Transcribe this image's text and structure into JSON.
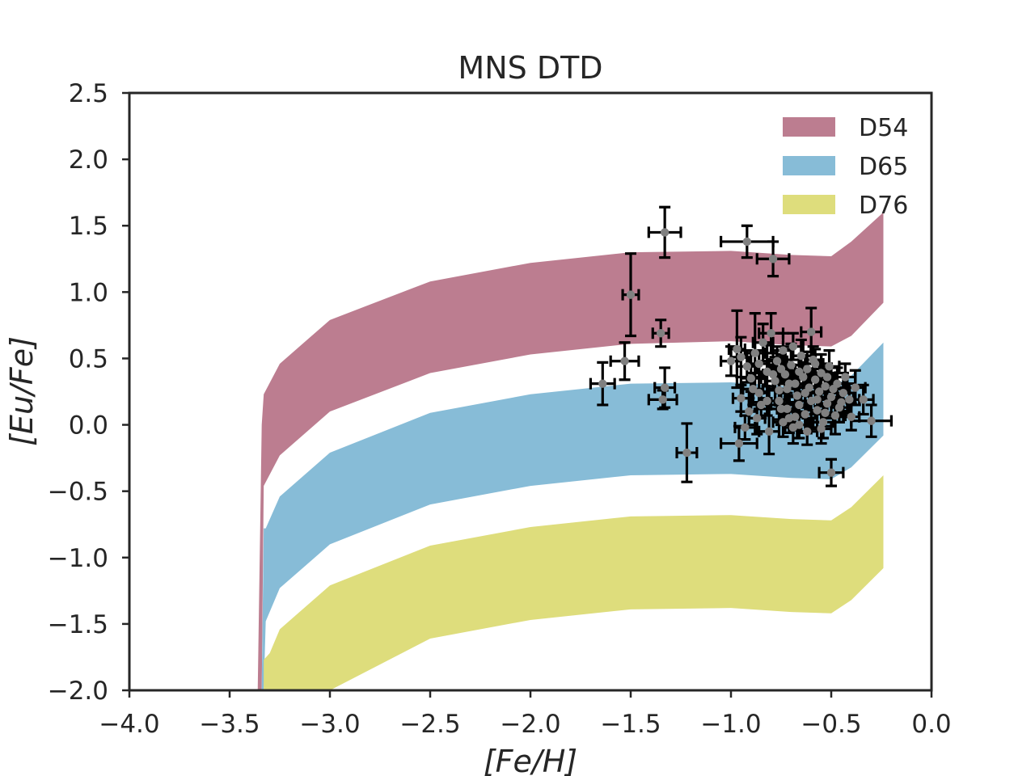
{
  "chart_data": {
    "type": "scatter",
    "title": "MNS DTD",
    "xlabel": "[Fe/H]",
    "ylabel": "[Eu/Fe]",
    "xlim": [
      -4.0,
      0.0
    ],
    "ylim": [
      -2.0,
      2.5
    ],
    "xticks": [
      "−4.0",
      "−3.5",
      "−3.0",
      "−2.5",
      "−2.0",
      "−1.5",
      "−1.0",
      "−0.5",
      "0.0"
    ],
    "xtick_values": [
      -4.0,
      -3.5,
      -3.0,
      -2.5,
      -2.0,
      -1.5,
      -1.0,
      -0.5,
      0.0
    ],
    "yticks": [
      "−2.0",
      "−1.5",
      "−1.0",
      "−0.5",
      "0.0",
      "0.5",
      "1.0",
      "1.5",
      "2.0",
      "2.5"
    ],
    "ytick_values": [
      -2.0,
      -1.5,
      -1.0,
      -0.5,
      0.0,
      0.5,
      1.0,
      1.5,
      2.0,
      2.5
    ],
    "grid": false,
    "legend_position": "top-right",
    "bands": [
      {
        "name": "D54",
        "color": "#bc7d90",
        "x": [
          -3.36,
          -3.34,
          -3.33,
          -3.25,
          -3.0,
          -2.5,
          -2.0,
          -1.5,
          -1.0,
          -0.7,
          -0.5,
          -0.4,
          -0.24
        ],
        "upper": [
          -2.2,
          0.0,
          0.23,
          0.46,
          0.79,
          1.08,
          1.22,
          1.3,
          1.31,
          1.28,
          1.27,
          1.38,
          1.6
        ],
        "lower": [
          -2.2,
          -2.1,
          -0.46,
          -0.23,
          0.1,
          0.39,
          0.53,
          0.61,
          0.63,
          0.6,
          0.59,
          0.67,
          0.92
        ]
      },
      {
        "name": "D65",
        "color": "#87bcd7",
        "x": [
          -3.34,
          -3.33,
          -3.32,
          -3.25,
          -3.0,
          -2.5,
          -2.0,
          -1.5,
          -1.0,
          -0.7,
          -0.5,
          -0.4,
          -0.24
        ],
        "upper": [
          -2.2,
          -0.78,
          -0.78,
          -0.54,
          -0.21,
          0.09,
          0.23,
          0.31,
          0.32,
          0.29,
          0.28,
          0.37,
          0.62
        ],
        "lower": [
          -2.2,
          -2.1,
          -1.48,
          -1.23,
          -0.9,
          -0.6,
          -0.46,
          -0.38,
          -0.37,
          -0.4,
          -0.41,
          -0.32,
          -0.08
        ]
      },
      {
        "name": "D76",
        "color": "#dedd7c",
        "x": [
          -3.33,
          -3.3,
          -3.25,
          -3.0,
          -2.5,
          -2.0,
          -1.5,
          -1.0,
          -0.7,
          -0.5,
          -0.4,
          -0.24
        ],
        "upper": [
          -1.77,
          -1.72,
          -1.54,
          -1.21,
          -0.91,
          -0.77,
          -0.69,
          -0.68,
          -0.71,
          -0.72,
          -0.62,
          -0.38
        ],
        "lower": [
          -2.2,
          -2.2,
          -2.2,
          -2.0,
          -1.61,
          -1.47,
          -1.39,
          -1.38,
          -1.41,
          -1.42,
          -1.32,
          -1.08
        ]
      }
    ],
    "legend": [
      "D54",
      "D65",
      "D76"
    ],
    "series": [
      {
        "name": "observations",
        "color": "#808080",
        "points": [
          [
            -1.33,
            1.45,
            0.08,
            0.19
          ],
          [
            -0.92,
            1.38,
            0.13,
            0.12
          ],
          [
            -0.79,
            1.25,
            0.08,
            0.13
          ],
          [
            -1.5,
            0.98,
            0.04,
            0.31
          ],
          [
            -1.35,
            0.69,
            0.04,
            0.1
          ],
          [
            -1.53,
            0.48,
            0.07,
            0.14
          ],
          [
            -1.64,
            0.31,
            0.06,
            0.16
          ],
          [
            -1.33,
            0.28,
            0.05,
            0.15
          ],
          [
            -1.34,
            0.19,
            0.07,
            0.07
          ],
          [
            -1.22,
            -0.21,
            0.05,
            0.22
          ],
          [
            -0.96,
            -0.14,
            0.09,
            0.13
          ],
          [
            -0.5,
            -0.36,
            0.06,
            0.1
          ],
          [
            -0.34,
            0.19,
            0.05,
            0.11
          ],
          [
            -0.3,
            0.03,
            0.1,
            0.12
          ],
          [
            -0.6,
            0.7,
            0.05,
            0.18
          ],
          [
            -1.0,
            0.48,
            0.05,
            0.11
          ],
          [
            -0.97,
            0.57,
            0.04,
            0.29
          ],
          [
            -0.95,
            0.51,
            0.05,
            0.15
          ],
          [
            -0.92,
            0.44,
            0.05,
            0.12
          ],
          [
            -0.9,
            0.35,
            0.05,
            0.1
          ],
          [
            -0.88,
            0.54,
            0.05,
            0.3
          ],
          [
            -0.86,
            0.24,
            0.04,
            0.12
          ],
          [
            -0.84,
            0.62,
            0.05,
            0.14
          ],
          [
            -0.82,
            0.4,
            0.06,
            0.2
          ],
          [
            -0.8,
            0.69,
            0.06,
            0.15
          ],
          [
            -0.78,
            0.33,
            0.05,
            0.18
          ],
          [
            -0.77,
            0.48,
            0.05,
            0.11
          ],
          [
            -0.76,
            0.18,
            0.05,
            0.14
          ],
          [
            -0.75,
            0.12,
            0.06,
            0.12
          ],
          [
            -0.74,
            0.56,
            0.05,
            0.13
          ],
          [
            -0.73,
            0.38,
            0.06,
            0.19
          ],
          [
            -0.72,
            0.27,
            0.04,
            0.12
          ],
          [
            -0.71,
            0.05,
            0.05,
            0.11
          ],
          [
            -0.7,
            0.45,
            0.05,
            0.16
          ],
          [
            -0.69,
            0.59,
            0.05,
            0.1
          ],
          [
            -0.68,
            0.31,
            0.05,
            0.14
          ],
          [
            -0.67,
            0.22,
            0.06,
            0.13
          ],
          [
            -0.66,
            0.15,
            0.05,
            0.15
          ],
          [
            -0.65,
            0.52,
            0.05,
            0.12
          ],
          [
            -0.64,
            0.36,
            0.05,
            0.11
          ],
          [
            -0.63,
            0.08,
            0.05,
            0.14
          ],
          [
            -0.62,
            0.42,
            0.06,
            0.13
          ],
          [
            -0.61,
            0.28,
            0.05,
            0.12
          ],
          [
            -0.6,
            0.18,
            0.05,
            0.16
          ],
          [
            -0.59,
            0.49,
            0.04,
            0.1
          ],
          [
            -0.58,
            0.34,
            0.05,
            0.15
          ],
          [
            -0.57,
            0.11,
            0.05,
            0.13
          ],
          [
            -0.56,
            0.25,
            0.06,
            0.11
          ],
          [
            -0.55,
            0.39,
            0.05,
            0.14
          ],
          [
            -0.54,
            0.02,
            0.05,
            0.12
          ],
          [
            -0.53,
            0.29,
            0.04,
            0.13
          ],
          [
            -0.52,
            0.16,
            0.05,
            0.11
          ],
          [
            -0.51,
            0.44,
            0.05,
            0.12
          ],
          [
            -0.5,
            0.21,
            0.05,
            0.13
          ],
          [
            -0.48,
            0.07,
            0.05,
            0.14
          ],
          [
            -0.47,
            0.31,
            0.05,
            0.12
          ],
          [
            -0.46,
            0.13,
            0.04,
            0.11
          ],
          [
            -0.44,
            0.24,
            0.06,
            0.15
          ],
          [
            -0.43,
            0.36,
            0.05,
            0.1
          ],
          [
            -0.41,
            0.19,
            0.05,
            0.12
          ],
          [
            -0.38,
            0.28,
            0.05,
            0.13
          ],
          [
            -0.91,
            0.1,
            0.04,
            0.1
          ],
          [
            -0.87,
            0.05,
            0.04,
            0.12
          ],
          [
            -0.93,
            -0.02,
            0.05,
            0.09
          ],
          [
            -0.81,
            -0.05,
            0.05,
            0.17
          ],
          [
            -0.69,
            -0.02,
            0.04,
            0.12
          ],
          [
            -0.62,
            -0.05,
            0.05,
            0.1
          ],
          [
            -0.55,
            -0.03,
            0.05,
            0.11
          ],
          [
            -0.66,
            0.0,
            0.05,
            0.1
          ],
          [
            -0.74,
            0.02,
            0.05,
            0.11
          ],
          [
            -0.95,
            0.2,
            0.04,
            0.1
          ],
          [
            -0.89,
            0.27,
            0.05,
            0.12
          ],
          [
            -0.85,
            0.15,
            0.05,
            0.1
          ],
          [
            -0.79,
            0.38,
            0.05,
            0.11
          ],
          [
            -0.71,
            0.31,
            0.05,
            0.1
          ],
          [
            -0.66,
            0.4,
            0.05,
            0.12
          ],
          [
            -0.58,
            0.46,
            0.04,
            0.11
          ],
          [
            -0.52,
            0.36,
            0.05,
            0.1
          ],
          [
            -0.45,
            0.17,
            0.05,
            0.11
          ],
          [
            -0.4,
            0.06,
            0.04,
            0.1
          ],
          [
            -0.86,
            0.46,
            0.05,
            0.1
          ],
          [
            -0.82,
            0.18,
            0.04,
            0.11
          ],
          [
            -0.76,
            0.26,
            0.05,
            0.1
          ],
          [
            -0.72,
            0.12,
            0.05,
            0.12
          ],
          [
            -0.68,
            0.06,
            0.05,
            0.1
          ],
          [
            -0.63,
            0.24,
            0.05,
            0.11
          ],
          [
            -0.57,
            0.19,
            0.04,
            0.1
          ],
          [
            -0.53,
            0.09,
            0.05,
            0.1
          ],
          [
            -0.49,
            0.27,
            0.05,
            0.12
          ],
          [
            -0.75,
            0.42,
            0.05,
            0.11
          ]
        ]
      }
    ],
    "errorbar_note": "points are [feh, eufe, x_err, y_err]"
  }
}
